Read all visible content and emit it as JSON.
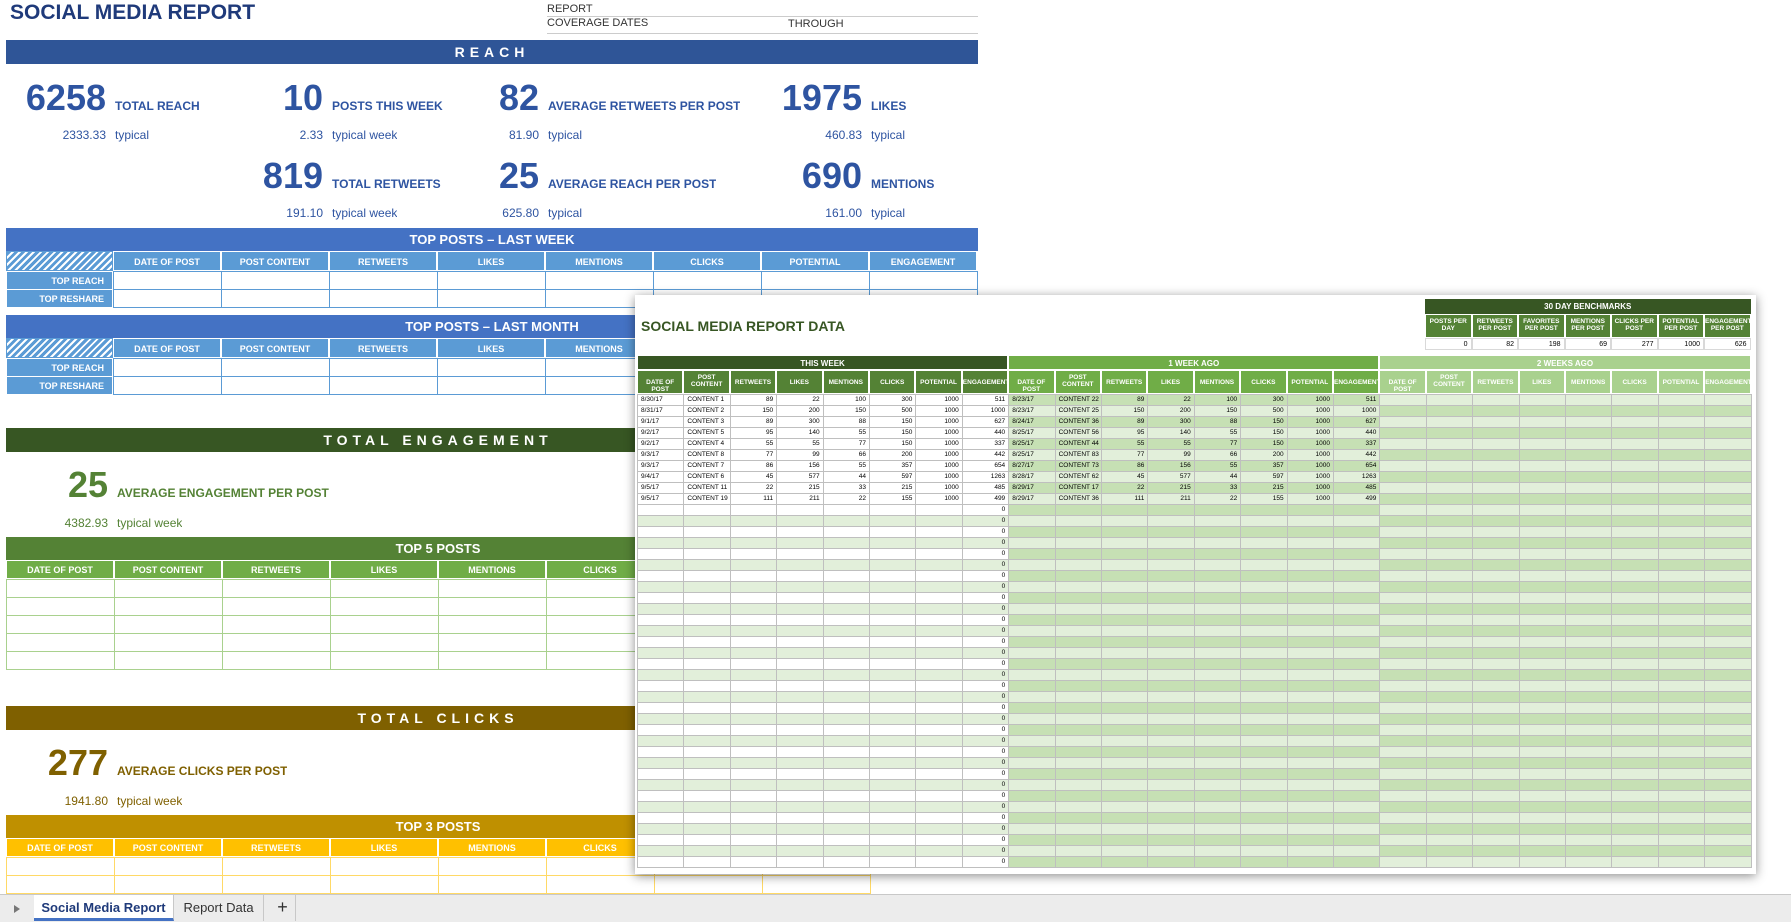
{
  "header": {
    "title": "SOCIAL MEDIA REPORT",
    "report_label": "REPORT",
    "coverage_label": "COVERAGE DATES",
    "through_label": "THROUGH"
  },
  "reach": {
    "heading": "REACH",
    "stats": [
      {
        "value": "6258",
        "label": "TOTAL REACH",
        "typical_value": "2333.33",
        "typical_label": "typical"
      },
      {
        "value": "10",
        "label": "POSTS THIS WEEK",
        "typical_value": "2.33",
        "typical_label": "typical week"
      },
      {
        "value": "82",
        "label": "AVERAGE RETWEETS PER POST",
        "typical_value": "81.90",
        "typical_label": "typical"
      },
      {
        "value": "1975",
        "label": "LIKES",
        "typical_value": "460.83",
        "typical_label": "typical"
      },
      {
        "value": "819",
        "label": "TOTAL RETWEETS",
        "typical_value": "191.10",
        "typical_label": "typical week"
      },
      {
        "value": "25",
        "label": "AVERAGE REACH PER POST",
        "typical_value": "625.80",
        "typical_label": "typical"
      },
      {
        "value": "690",
        "label": "MENTIONS",
        "typical_value": "161.00",
        "typical_label": "typical"
      }
    ]
  },
  "top_posts_last_week": {
    "title": "TOP POSTS – LAST WEEK",
    "columns": [
      "DATE OF POST",
      "POST CONTENT",
      "RETWEETS",
      "LIKES",
      "MENTIONS",
      "CLICKS",
      "POTENTIAL",
      "ENGAGEMENT"
    ],
    "row_labels": [
      "TOP REACH",
      "TOP RESHARE"
    ]
  },
  "top_posts_last_month": {
    "title": "TOP POSTS – LAST MONTH",
    "columns": [
      "DATE OF POST",
      "POST CONTENT",
      "RETWEETS",
      "LIKES",
      "MENTIONS"
    ],
    "row_labels": [
      "TOP REACH",
      "TOP RESHARE"
    ]
  },
  "engagement": {
    "heading": "TOTAL ENGAGEMENT",
    "value": "25",
    "label": "AVERAGE ENGAGEMENT PER POST",
    "typical_value": "4382.93",
    "typical_label": "typical week",
    "top_title": "TOP 5 POSTS",
    "columns": [
      "DATE OF POST",
      "POST CONTENT",
      "RETWEETS",
      "LIKES",
      "MENTIONS",
      "CLICKS"
    ]
  },
  "clicks": {
    "heading": "TOTAL CLICKS",
    "value": "277",
    "label": "AVERAGE CLICKS PER POST",
    "typical_value": "1941.80",
    "typical_label": "typical week",
    "top_title": "TOP 3 POSTS",
    "columns": [
      "DATE OF POST",
      "POST CONTENT",
      "RETWEETS",
      "LIKES",
      "MENTIONS",
      "CLICKS"
    ]
  },
  "data_sheet": {
    "title": "SOCIAL MEDIA REPORT DATA",
    "benchmarks": {
      "title": "30 DAY BENCHMARKS",
      "columns": [
        "POSTS PER DAY",
        "RETWEETS PER POST",
        "FAVORITES PER POST",
        "MENTIONS PER POST",
        "CLICKS PER POST",
        "POTENTIAL PER POST",
        "ENGAGEMENT PER POST"
      ],
      "values": [
        0,
        82,
        198,
        69,
        277,
        1000,
        626
      ]
    },
    "columns": [
      "DATE OF POST",
      "POST CONTENT",
      "RETWEETS",
      "LIKES",
      "MENTIONS",
      "CLICKS",
      "POTENTIAL",
      "ENGAGEMENT"
    ],
    "groups": [
      {
        "name": "THIS WEEK",
        "rows": [
          [
            "8/30/17",
            "CONTENT 1",
            89,
            22,
            100,
            300,
            1000,
            511
          ],
          [
            "8/31/17",
            "CONTENT 2",
            150,
            200,
            150,
            500,
            1000,
            1000
          ],
          [
            "9/1/17",
            "CONTENT 3",
            89,
            300,
            88,
            150,
            1000,
            627
          ],
          [
            "9/2/17",
            "CONTENT 5",
            95,
            140,
            55,
            150,
            1000,
            440
          ],
          [
            "9/2/17",
            "CONTENT 4",
            55,
            55,
            77,
            150,
            1000,
            337
          ],
          [
            "9/3/17",
            "CONTENT 8",
            77,
            99,
            66,
            200,
            1000,
            442
          ],
          [
            "9/3/17",
            "CONTENT 7",
            86,
            156,
            55,
            357,
            1000,
            654
          ],
          [
            "9/4/17",
            "CONTENT 6",
            45,
            577,
            44,
            597,
            1000,
            1263
          ],
          [
            "9/5/17",
            "CONTENT 11",
            22,
            215,
            33,
            215,
            1000,
            485
          ],
          [
            "9/5/17",
            "CONTENT 19",
            111,
            211,
            22,
            155,
            1000,
            499
          ]
        ],
        "empty_engagement": [
          0,
          0,
          0,
          0,
          0,
          0,
          0,
          0,
          0,
          0,
          0,
          0,
          0,
          0,
          0,
          0,
          0,
          0,
          0,
          0,
          0,
          0,
          0,
          0,
          0,
          0,
          0,
          0,
          0,
          0,
          0,
          0,
          0
        ]
      },
      {
        "name": "1 WEEK AGO",
        "rows": [
          [
            "8/23/17",
            "CONTENT 22",
            89,
            22,
            100,
            300,
            1000,
            511
          ],
          [
            "8/23/17",
            "CONTENT 25",
            150,
            200,
            150,
            500,
            1000,
            1000
          ],
          [
            "8/24/17",
            "CONTENT 36",
            89,
            300,
            88,
            150,
            1000,
            627
          ],
          [
            "8/25/17",
            "CONTENT 56",
            95,
            140,
            55,
            150,
            1000,
            440
          ],
          [
            "8/25/17",
            "CONTENT 44",
            55,
            55,
            77,
            150,
            1000,
            337
          ],
          [
            "8/25/17",
            "CONTENT 83",
            77,
            99,
            66,
            200,
            1000,
            442
          ],
          [
            "8/27/17",
            "CONTENT 73",
            86,
            156,
            55,
            357,
            1000,
            654
          ],
          [
            "8/28/17",
            "CONTENT 62",
            45,
            577,
            44,
            597,
            1000,
            1263
          ],
          [
            "8/29/17",
            "CONTENT 17",
            22,
            215,
            33,
            215,
            1000,
            485
          ],
          [
            "8/29/17",
            "CONTENT 36",
            111,
            211,
            22,
            155,
            1000,
            499
          ]
        ]
      },
      {
        "name": "2 WEEKS AGO",
        "rows": []
      }
    ]
  },
  "tabs": [
    "Social Media Report",
    "Report Data",
    "+"
  ]
}
